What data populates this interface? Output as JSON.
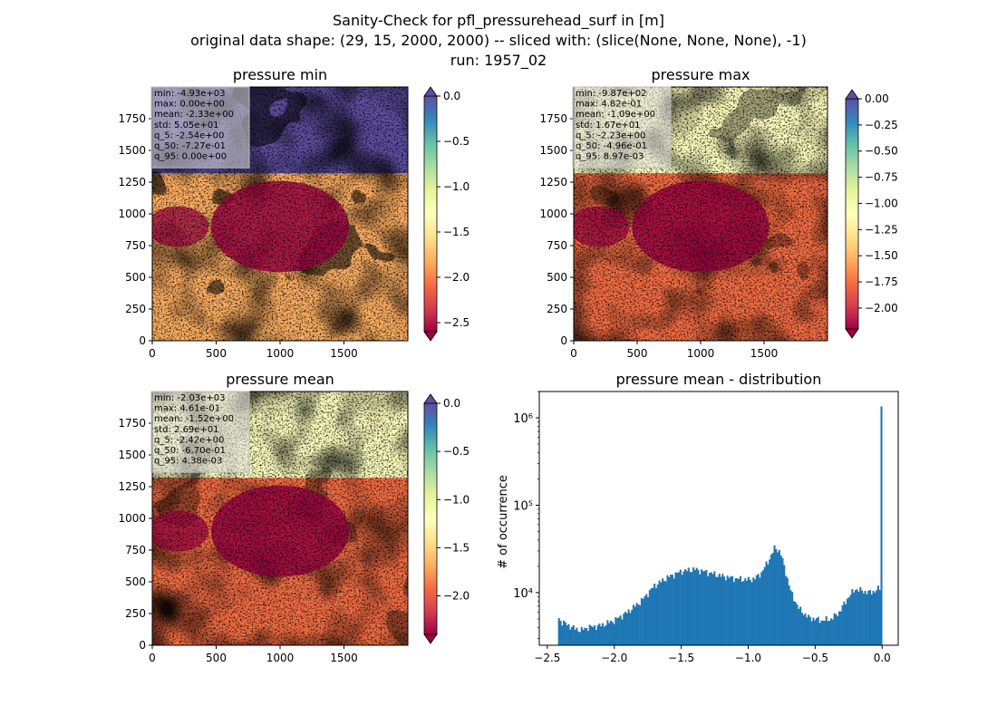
{
  "figure": {
    "title_lines": [
      "Sanity-Check for pfl_pressurehead_surf in [m]",
      "original data shape: (29, 15, 2000, 2000) -- sliced with: (slice(None, None, None), -1)",
      "run: 1957_02"
    ]
  },
  "colors": {
    "spectral_stops": [
      "#9e0142",
      "#d53e4f",
      "#f46d43",
      "#fdae61",
      "#fee08b",
      "#ffffbf",
      "#e6f598",
      "#abdda4",
      "#66c2a5",
      "#3288bd",
      "#5e4fa2"
    ],
    "hist_bar": "#1f77b4"
  },
  "chart_data": [
    {
      "type": "heatmap",
      "title": "pressure min",
      "colormap": "Spectral",
      "extend": "both",
      "xlim": [
        0,
        2000
      ],
      "ylim": [
        0,
        2000
      ],
      "x_ticks": [
        0,
        500,
        1000,
        1500
      ],
      "y_ticks": [
        0,
        250,
        500,
        750,
        1000,
        1250,
        1500,
        1750
      ],
      "colorbar_range": [
        -2.6,
        0.0
      ],
      "colorbar_ticks": [
        "0.0",
        "−0.5",
        "−1.0",
        "−1.5",
        "−2.0",
        "−2.5"
      ],
      "colorbar_tick_values": [
        0.0,
        -0.5,
        -1.0,
        -1.5,
        -2.0,
        -2.5
      ],
      "stats": [
        "min: -4.93e+03",
        "max: 0.00e+00",
        "mean: -2.33e+00",
        "std: 5.05e+01",
        "q_5: -2.54e+00",
        "q_50: -7.27e-01",
        "q_95: 0.00e+00"
      ]
    },
    {
      "type": "heatmap",
      "title": "pressure max",
      "colormap": "Spectral",
      "extend": "both",
      "xlim": [
        0,
        2000
      ],
      "ylim": [
        0,
        2000
      ],
      "x_ticks": [
        0,
        500,
        1000,
        1500
      ],
      "y_ticks": [
        0,
        250,
        500,
        750,
        1000,
        1250,
        1500,
        1750
      ],
      "colorbar_range": [
        -2.2,
        0.0
      ],
      "colorbar_ticks": [
        "0.00",
        "−0.25",
        "−0.50",
        "−0.75",
        "−1.00",
        "−1.25",
        "−1.50",
        "−1.75",
        "−2.00"
      ],
      "colorbar_tick_values": [
        0.0,
        -0.25,
        -0.5,
        -0.75,
        -1.0,
        -1.25,
        -1.5,
        -1.75,
        -2.0
      ],
      "stats": [
        "min: -9.87e+02",
        "max: 4.82e-01",
        "mean: -1.09e+00",
        "std: 1.67e+01",
        "q_5: -2.23e+00",
        "q_50: -4.96e-01",
        "q_95: 8.97e-03"
      ]
    },
    {
      "type": "heatmap",
      "title": "pressure mean",
      "colormap": "Spectral",
      "extend": "both",
      "xlim": [
        0,
        2000
      ],
      "ylim": [
        0,
        2000
      ],
      "x_ticks": [
        0,
        500,
        1000,
        1500
      ],
      "y_ticks": [
        0,
        250,
        500,
        750,
        1000,
        1250,
        1500,
        1750
      ],
      "colorbar_range": [
        -2.4,
        0.0
      ],
      "colorbar_ticks": [
        "0.0",
        "−0.5",
        "−1.0",
        "−1.5",
        "−2.0"
      ],
      "colorbar_tick_values": [
        0.0,
        -0.5,
        -1.0,
        -1.5,
        -2.0
      ],
      "stats": [
        "min: -2.03e+03",
        "max: 4.61e-01",
        "mean: -1.52e+00",
        "std: 2.69e+01",
        "q_5: -2.42e+00",
        "q_50: -6.70e-01",
        "q_95: 4.38e-03"
      ]
    },
    {
      "type": "bar",
      "title": "pressure mean - distribution",
      "ylabel": "# of occurrence",
      "y_scale": "log",
      "xlim": [
        -2.56,
        0.12
      ],
      "ylim": [
        2500,
        2000000
      ],
      "x_ticks": [
        -2.5,
        -2.0,
        -1.5,
        -1.0,
        -0.5,
        0.0
      ],
      "x_tick_labels": [
        "−2.5",
        "−2.0",
        "−1.5",
        "−1.0",
        "−0.5",
        "0.0"
      ],
      "y_ticks": [
        10000,
        100000,
        1000000
      ],
      "y_tick_labels": [
        "10⁴",
        "10⁵",
        "10⁶"
      ],
      "bins": {
        "start": -2.42,
        "end": 0.0,
        "count": 200
      },
      "profile": [
        {
          "x": -2.42,
          "y": 5300
        },
        {
          "x": -2.4,
          "y": 4700
        },
        {
          "x": -2.35,
          "y": 4300
        },
        {
          "x": -2.3,
          "y": 3900
        },
        {
          "x": -2.25,
          "y": 3700
        },
        {
          "x": -2.2,
          "y": 4000
        },
        {
          "x": -2.1,
          "y": 4200
        },
        {
          "x": -2.0,
          "y": 4800
        },
        {
          "x": -1.9,
          "y": 6000
        },
        {
          "x": -1.8,
          "y": 8000
        },
        {
          "x": -1.7,
          "y": 12000
        },
        {
          "x": -1.6,
          "y": 15000
        },
        {
          "x": -1.5,
          "y": 17500
        },
        {
          "x": -1.4,
          "y": 18500
        },
        {
          "x": -1.3,
          "y": 17000
        },
        {
          "x": -1.2,
          "y": 15500
        },
        {
          "x": -1.1,
          "y": 14500
        },
        {
          "x": -1.0,
          "y": 14000
        },
        {
          "x": -0.95,
          "y": 14500
        },
        {
          "x": -0.9,
          "y": 17000
        },
        {
          "x": -0.85,
          "y": 23000
        },
        {
          "x": -0.8,
          "y": 33000
        },
        {
          "x": -0.76,
          "y": 29000
        },
        {
          "x": -0.72,
          "y": 17000
        },
        {
          "x": -0.68,
          "y": 10000
        },
        {
          "x": -0.62,
          "y": 6500
        },
        {
          "x": -0.55,
          "y": 5200
        },
        {
          "x": -0.45,
          "y": 4800
        },
        {
          "x": -0.38,
          "y": 5000
        },
        {
          "x": -0.32,
          "y": 6000
        },
        {
          "x": -0.25,
          "y": 9000
        },
        {
          "x": -0.2,
          "y": 11000
        },
        {
          "x": -0.15,
          "y": 10500
        },
        {
          "x": -0.1,
          "y": 10000
        },
        {
          "x": -0.05,
          "y": 10500
        },
        {
          "x": -0.01,
          "y": 11500
        }
      ],
      "spike": {
        "x": 0.0,
        "y": 1350000
      }
    }
  ]
}
